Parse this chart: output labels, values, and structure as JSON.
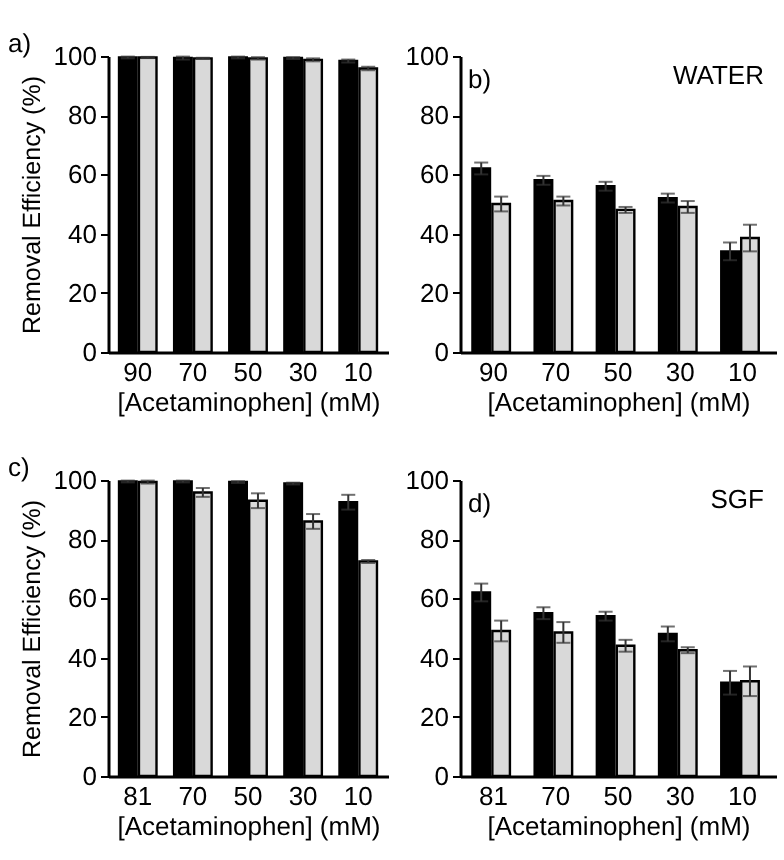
{
  "chart_data": [
    {
      "type": "bar",
      "ylabel": "Removal Efficiency (%)",
      "xlabel": "[Acetaminophen] (mM)",
      "annotations": [
        "a)"
      ],
      "categories": [
        "90",
        "70",
        "50",
        "30",
        "10"
      ],
      "ylim": [
        0,
        100
      ],
      "yticks": [
        0,
        20,
        40,
        60,
        80,
        100
      ],
      "grid": false,
      "legend": false,
      "series": [
        {
          "color": "#000000",
          "values": [
            99.5,
            99.3,
            99.5,
            99.3,
            98.3
          ],
          "errors": [
            0.3,
            0.5,
            0.3,
            0.3,
            0.5
          ]
        },
        {
          "color": "#d9d9d9",
          "values": [
            99.5,
            99.2,
            99.2,
            98.7,
            95.8
          ],
          "errors": [
            0.2,
            0.2,
            0.4,
            0.5,
            0.6
          ]
        }
      ]
    },
    {
      "type": "bar",
      "xlabel": "[Acetaminophen] (mM)",
      "annotations": [
        "b)",
        "WATER"
      ],
      "categories": [
        "90",
        "70",
        "50",
        "30",
        "10"
      ],
      "ylim": [
        0,
        100
      ],
      "yticks": [
        0,
        20,
        40,
        60,
        80,
        100
      ],
      "grid": false,
      "legend": false,
      "series": [
        {
          "color": "#000000",
          "values": [
            62,
            58,
            56,
            52,
            34
          ],
          "errors": [
            2,
            1.5,
            1.5,
            1.5,
            3
          ]
        },
        {
          "color": "#d9d9d9",
          "values": [
            50,
            51,
            48,
            49,
            38.5
          ],
          "errors": [
            2.5,
            1.5,
            1,
            2,
            4.5
          ]
        }
      ]
    },
    {
      "type": "bar",
      "ylabel": "Removal Efficiency (%)",
      "xlabel": "[Acetaminophen] (mM)",
      "annotations": [
        "c)"
      ],
      "categories": [
        "81",
        "70",
        "50",
        "30",
        "10"
      ],
      "ylim": [
        0,
        100
      ],
      "yticks": [
        0,
        20,
        40,
        60,
        80,
        100
      ],
      "grid": false,
      "legend": false,
      "series": [
        {
          "color": "#000000",
          "values": [
            99.5,
            99.5,
            99.3,
            98.8,
            92.5
          ],
          "errors": [
            0.3,
            0.3,
            0.3,
            0.3,
            2.5
          ]
        },
        {
          "color": "#d9d9d9",
          "values": [
            99.3,
            95.8,
            93,
            86,
            72.5
          ],
          "errors": [
            0.5,
            1.5,
            2.5,
            2.5,
            0.5
          ]
        }
      ]
    },
    {
      "type": "bar",
      "xlabel": "[Acetaminophen] (mM)",
      "annotations": [
        "d)",
        "SGF"
      ],
      "categories": [
        "81",
        "70",
        "50",
        "30",
        "10"
      ],
      "ylim": [
        0,
        100
      ],
      "yticks": [
        0,
        20,
        40,
        60,
        80,
        100
      ],
      "grid": false,
      "legend": false,
      "series": [
        {
          "color": "#000000",
          "values": [
            62,
            55,
            54,
            48,
            31.5
          ],
          "errors": [
            3,
            2,
            1.5,
            2.5,
            4
          ]
        },
        {
          "color": "#d9d9d9",
          "values": [
            49,
            48.5,
            44,
            42.5,
            32
          ],
          "errors": [
            3.5,
            3.5,
            2,
            1,
            5
          ]
        }
      ]
    }
  ]
}
